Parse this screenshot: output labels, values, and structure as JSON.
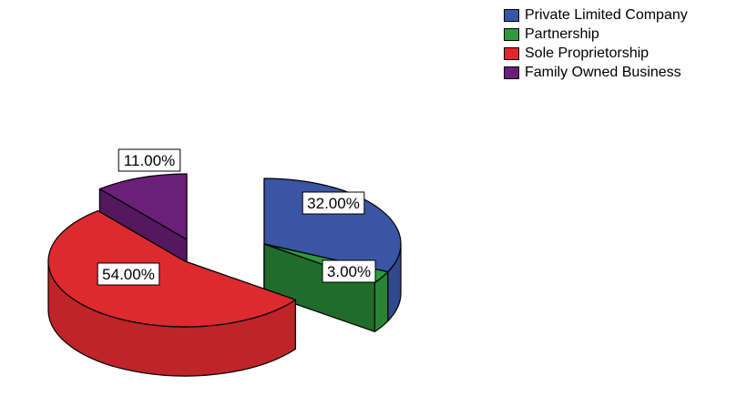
{
  "chart_data": {
    "type": "pie",
    "title": "",
    "categories": [
      "Private Limited Company",
      "Partnership",
      "Sole Proprietorship",
      "Family Owned Business"
    ],
    "values": [
      32.0,
      3.0,
      54.0,
      11.0
    ],
    "labels": [
      "32.00%",
      "3.00%",
      "54.00%",
      "11.00%"
    ],
    "colors": [
      "#3a55a4",
      "#2e9a3e",
      "#dd2a2f",
      "#6a1f78"
    ],
    "exploded": true,
    "style": "3d",
    "legend": "top-right"
  }
}
